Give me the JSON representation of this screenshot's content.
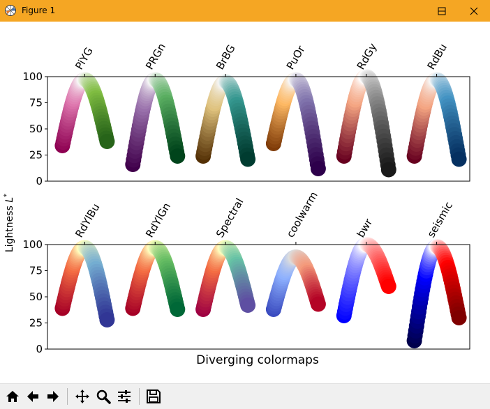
{
  "window": {
    "title": "Figure 1",
    "buttons": [
      "minimize",
      "maximize",
      "close"
    ]
  },
  "figure": {
    "xlabel": "Diverging colormaps",
    "ylabel": "Lightness L*",
    "ylabel_main": "Lightness ",
    "ylabel_var": "L",
    "ylabel_sup": "*"
  },
  "chart_data": [
    {
      "type": "scatter",
      "title": "",
      "ylabel": "Lightness L*",
      "ylim": [
        0,
        100
      ],
      "yticks": [
        0,
        25,
        50,
        75,
        100
      ],
      "grid": false,
      "categories": [
        "PiYG",
        "PRGn",
        "BrBG",
        "PuOr",
        "RdGy",
        "RdBu"
      ],
      "series": [
        {
          "name": "PiYG",
          "start": 34,
          "peak": 97,
          "end": 38,
          "colors": [
            "#8e0152",
            "#de77ae",
            "#f7f7f7",
            "#7fbc41",
            "#276419"
          ]
        },
        {
          "name": "PRGn",
          "start": 16,
          "peak": 97,
          "end": 24,
          "colors": [
            "#40004b",
            "#9970ab",
            "#f7f7f7",
            "#5aae61",
            "#00441b"
          ]
        },
        {
          "name": "BrBG",
          "start": 24,
          "peak": 95,
          "end": 21,
          "colors": [
            "#543005",
            "#dfc27d",
            "#f5f5f5",
            "#35978f",
            "#003c30"
          ]
        },
        {
          "name": "PuOr",
          "start": 36,
          "peak": 97,
          "end": 12,
          "colors": [
            "#7f3b08",
            "#fdb863",
            "#f7f7f7",
            "#8073ac",
            "#2d004b"
          ]
        },
        {
          "name": "RdGy",
          "start": 24,
          "peak": 100,
          "end": 11,
          "colors": [
            "#67001f",
            "#f4a582",
            "#ffffff",
            "#878787",
            "#1a1a1a"
          ]
        },
        {
          "name": "RdBu",
          "start": 24,
          "peak": 97,
          "end": 21,
          "colors": [
            "#67001f",
            "#f4a582",
            "#f7f7f7",
            "#4393c3",
            "#053061"
          ]
        }
      ]
    },
    {
      "type": "scatter",
      "title": "",
      "ylabel": "Lightness L*",
      "ylim": [
        0,
        100
      ],
      "yticks": [
        0,
        25,
        50,
        75,
        100
      ],
      "grid": false,
      "categories": [
        "RdYlBu",
        "RdYlGn",
        "Spectral",
        "coolwarm",
        "bwr",
        "seismic"
      ],
      "series": [
        {
          "name": "RdYlBu",
          "start": 39,
          "peak": 97,
          "end": 28,
          "colors": [
            "#a50026",
            "#f46d43",
            "#ffffbf",
            "#74add1",
            "#313695"
          ]
        },
        {
          "name": "RdYlGn",
          "start": 39,
          "peak": 97,
          "end": 38,
          "colors": [
            "#a50026",
            "#f46d43",
            "#ffffbf",
            "#66bd63",
            "#006837"
          ]
        },
        {
          "name": "Spectral",
          "start": 38,
          "peak": 97,
          "end": 42,
          "colors": [
            "#9e0142",
            "#f46d43",
            "#ffffbf",
            "#66c2a5",
            "#5e4fa2"
          ]
        },
        {
          "name": "coolwarm",
          "start": 38,
          "peak": 88,
          "end": 43,
          "colors": [
            "#3b4cc0",
            "#8db0fe",
            "#dddddd",
            "#f49a7b",
            "#b40426"
          ]
        },
        {
          "name": "bwr",
          "start": 32,
          "peak": 100,
          "end": 60,
          "colors": [
            "#0000ff",
            "#8080ff",
            "#ffffff",
            "#ff8080",
            "#ff0000"
          ]
        },
        {
          "name": "seismic",
          "start": 8,
          "peak": 98,
          "end": 30,
          "colors": [
            "#00004c",
            "#0000ff",
            "#ffffff",
            "#ff0000",
            "#7f0000"
          ]
        }
      ]
    }
  ],
  "toolbar": {
    "buttons": [
      "home-icon",
      "back-icon",
      "forward-icon",
      "pan-icon",
      "zoom-icon",
      "configure-icon",
      "save-icon"
    ]
  }
}
